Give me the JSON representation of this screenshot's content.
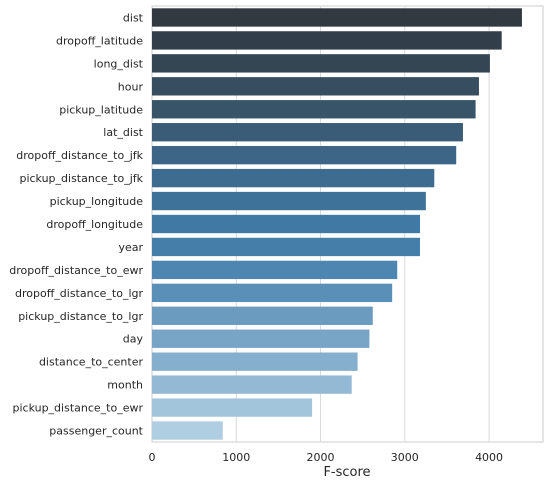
{
  "chart_data": {
    "type": "bar",
    "orientation": "horizontal",
    "categories": [
      "dist",
      "dropoff_latitude",
      "long_dist",
      "hour",
      "pickup_latitude",
      "lat_dist",
      "dropoff_distance_to_jfk",
      "pickup_distance_to_jfk",
      "pickup_longitude",
      "dropoff_longitude",
      "year",
      "dropoff_distance_to_ewr",
      "dropoff_distance_to_lgr",
      "pickup_distance_to_lgr",
      "day",
      "distance_to_center",
      "month",
      "pickup_distance_to_ewr",
      "passenger_count"
    ],
    "values": [
      4390,
      4150,
      4010,
      3880,
      3840,
      3690,
      3610,
      3350,
      3250,
      3180,
      3180,
      2910,
      2850,
      2620,
      2580,
      2440,
      2370,
      1900,
      840
    ],
    "xlabel": "F-score",
    "ylabel": "",
    "title": "",
    "xlim": [
      0,
      4640
    ],
    "xticks": [
      0,
      1000,
      2000,
      3000,
      4000
    ],
    "xtick_labels": [
      "0",
      "1000",
      "2000",
      "3000",
      "4000"
    ],
    "grid": "vertical",
    "colors": [
      "#323a41",
      "#323f4b",
      "#344654",
      "#364e60",
      "#385469",
      "#3b5c76",
      "#3d6585",
      "#3e6c90",
      "#3f7299",
      "#4079a3",
      "#457fa9",
      "#4d87b1",
      "#5a90b7",
      "#6b9cc0",
      "#78a4c6",
      "#86afcd",
      "#93b9d4",
      "#a3c5dc",
      "#b0cee1"
    ]
  }
}
